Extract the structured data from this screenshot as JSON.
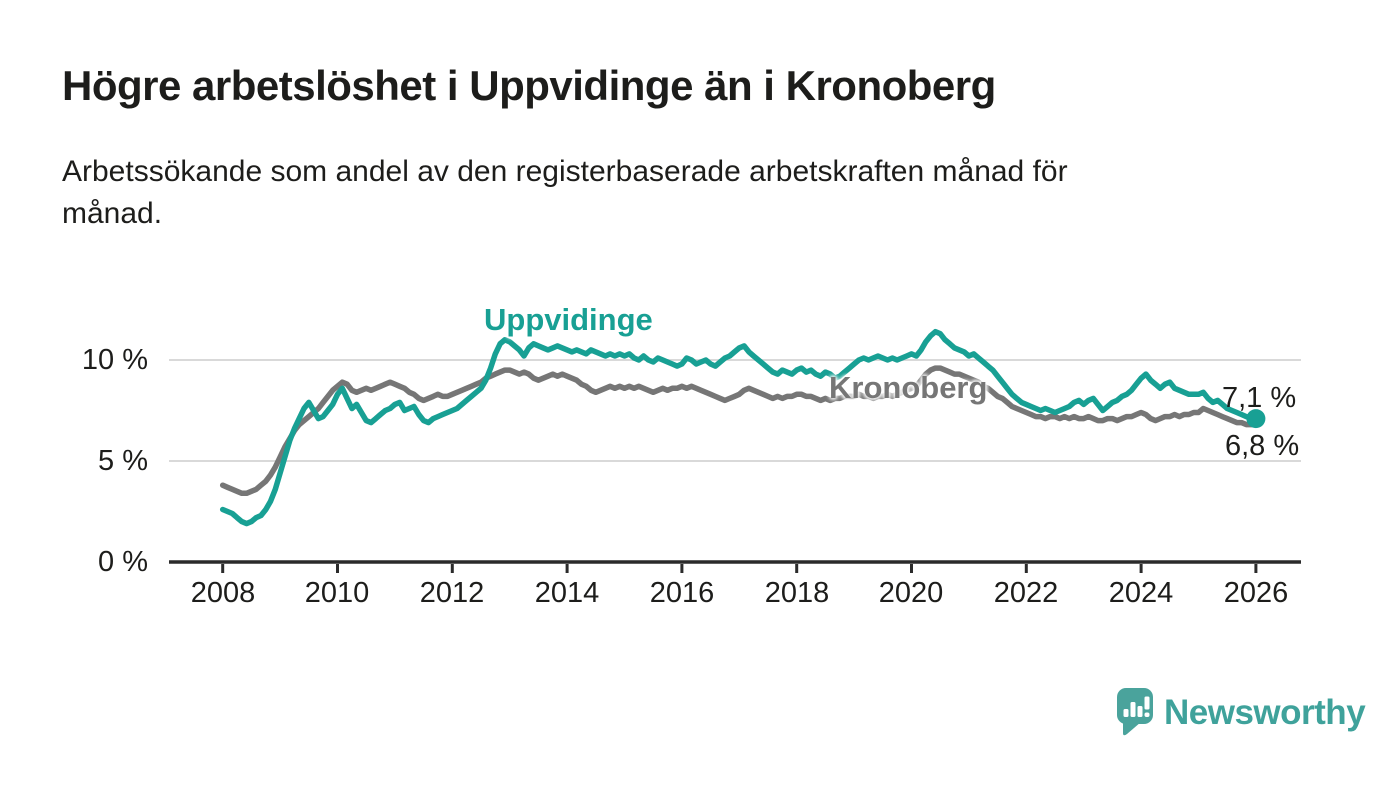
{
  "header": {
    "title": "Högre arbetslöshet i Uppvidinge än i Kronoberg",
    "subtitle": "Arbetssökande som andel av den registerbaserade arbetskraften månad för månad."
  },
  "chart_data": {
    "type": "line",
    "title": "Högre arbetslöshet i Uppvidinge än i Kronoberg",
    "x_unit": "month",
    "x_start": "2008-01",
    "x_end": "2026-01",
    "y_unit": "percent",
    "ylim": [
      0,
      11.5
    ],
    "grid": true,
    "grid_y_values": [
      5,
      10
    ],
    "y_tick_values": [
      0,
      5,
      10
    ],
    "y_tick_labels": [
      "0 %",
      "5 %",
      "10 %"
    ],
    "x_tick_years": [
      2008,
      2010,
      2012,
      2014,
      2016,
      2018,
      2020,
      2022,
      2024,
      2026
    ],
    "x_tick_labels": [
      "2008",
      "2010",
      "2012",
      "2014",
      "2016",
      "2018",
      "2020",
      "2022",
      "2024",
      "2026"
    ],
    "legend_position": "inline-labels",
    "style": {
      "axis_color": "#2B2B2B",
      "grid_color": "#D9D9D9"
    },
    "series": [
      {
        "name": "Uppvidinge",
        "label_text": "Uppvidinge",
        "color": "#18A094",
        "end_label": "7,1 %",
        "end_value": 7.1,
        "end_dot": true,
        "values": [
          2.6,
          2.5,
          2.4,
          2.2,
          2.0,
          1.9,
          2.0,
          2.2,
          2.3,
          2.6,
          3.0,
          3.6,
          4.4,
          5.2,
          6.0,
          6.6,
          7.1,
          7.6,
          7.9,
          7.5,
          7.1,
          7.2,
          7.5,
          7.8,
          8.3,
          8.6,
          8.1,
          7.6,
          7.8,
          7.4,
          7.0,
          6.9,
          7.1,
          7.3,
          7.5,
          7.6,
          7.8,
          7.9,
          7.5,
          7.6,
          7.7,
          7.3,
          7.0,
          6.9,
          7.1,
          7.2,
          7.3,
          7.4,
          7.5,
          7.6,
          7.8,
          8.0,
          8.2,
          8.4,
          8.6,
          9.0,
          9.6,
          10.3,
          10.8,
          11.0,
          10.9,
          10.7,
          10.5,
          10.2,
          10.6,
          10.8,
          10.7,
          10.6,
          10.5,
          10.6,
          10.7,
          10.6,
          10.5,
          10.4,
          10.5,
          10.4,
          10.3,
          10.5,
          10.4,
          10.3,
          10.2,
          10.3,
          10.2,
          10.3,
          10.2,
          10.3,
          10.1,
          10.0,
          10.2,
          10.0,
          9.9,
          10.1,
          10.0,
          9.9,
          9.8,
          9.7,
          9.8,
          10.1,
          10.0,
          9.8,
          9.9,
          10.0,
          9.8,
          9.7,
          9.9,
          10.1,
          10.2,
          10.4,
          10.6,
          10.7,
          10.4,
          10.2,
          10.0,
          9.8,
          9.6,
          9.4,
          9.3,
          9.5,
          9.4,
          9.3,
          9.5,
          9.6,
          9.4,
          9.5,
          9.3,
          9.2,
          9.4,
          9.3,
          9.1,
          9.2,
          9.4,
          9.6,
          9.8,
          10.0,
          10.1,
          10.0,
          10.1,
          10.2,
          10.1,
          10.0,
          10.1,
          10.0,
          10.1,
          10.2,
          10.3,
          10.2,
          10.5,
          10.9,
          11.2,
          11.4,
          11.3,
          11.0,
          10.8,
          10.6,
          10.5,
          10.4,
          10.2,
          10.3,
          10.1,
          9.9,
          9.7,
          9.5,
          9.2,
          8.9,
          8.6,
          8.3,
          8.1,
          7.9,
          7.8,
          7.7,
          7.6,
          7.5,
          7.6,
          7.5,
          7.4,
          7.5,
          7.6,
          7.7,
          7.9,
          8.0,
          7.8,
          8.0,
          8.1,
          7.8,
          7.5,
          7.7,
          7.9,
          8.0,
          8.2,
          8.3,
          8.5,
          8.8,
          9.1,
          9.3,
          9.0,
          8.8,
          8.6,
          8.8,
          8.9,
          8.6,
          8.5,
          8.4,
          8.3,
          8.3,
          8.3,
          8.4,
          8.1,
          7.9,
          8.0,
          7.8,
          7.6,
          7.5,
          7.4,
          7.3,
          7.2,
          7.1,
          7.1
        ]
      },
      {
        "name": "Kronoberg",
        "label_text": "Kronoberg",
        "color": "#767676",
        "end_label": "6,8 %",
        "end_value": 6.8,
        "end_dot": false,
        "values": [
          3.8,
          3.7,
          3.6,
          3.5,
          3.4,
          3.4,
          3.5,
          3.6,
          3.8,
          4.0,
          4.3,
          4.7,
          5.2,
          5.7,
          6.1,
          6.5,
          6.8,
          7.0,
          7.2,
          7.4,
          7.6,
          7.9,
          8.2,
          8.5,
          8.7,
          8.9,
          8.8,
          8.5,
          8.4,
          8.5,
          8.6,
          8.5,
          8.6,
          8.7,
          8.8,
          8.9,
          8.8,
          8.7,
          8.6,
          8.4,
          8.3,
          8.1,
          8.0,
          8.1,
          8.2,
          8.3,
          8.2,
          8.2,
          8.3,
          8.4,
          8.5,
          8.6,
          8.7,
          8.8,
          8.9,
          9.1,
          9.2,
          9.3,
          9.4,
          9.5,
          9.5,
          9.4,
          9.3,
          9.4,
          9.3,
          9.1,
          9.0,
          9.1,
          9.2,
          9.3,
          9.2,
          9.3,
          9.2,
          9.1,
          9.0,
          8.8,
          8.7,
          8.5,
          8.4,
          8.5,
          8.6,
          8.7,
          8.6,
          8.7,
          8.6,
          8.7,
          8.6,
          8.7,
          8.6,
          8.5,
          8.4,
          8.5,
          8.6,
          8.5,
          8.6,
          8.6,
          8.7,
          8.6,
          8.7,
          8.6,
          8.5,
          8.4,
          8.3,
          8.2,
          8.1,
          8.0,
          8.1,
          8.2,
          8.3,
          8.5,
          8.6,
          8.5,
          8.4,
          8.3,
          8.2,
          8.1,
          8.2,
          8.1,
          8.2,
          8.2,
          8.3,
          8.3,
          8.2,
          8.2,
          8.1,
          8.0,
          8.1,
          8.0,
          8.1,
          8.1,
          8.2,
          8.2,
          8.2,
          8.3,
          8.2,
          8.2,
          8.1,
          8.2,
          8.2,
          8.3,
          8.2,
          8.3,
          8.4,
          8.5,
          8.6,
          8.7,
          9.0,
          9.3,
          9.5,
          9.6,
          9.6,
          9.5,
          9.4,
          9.3,
          9.3,
          9.2,
          9.1,
          9.0,
          8.9,
          8.7,
          8.6,
          8.4,
          8.2,
          8.1,
          7.9,
          7.7,
          7.6,
          7.5,
          7.4,
          7.3,
          7.2,
          7.2,
          7.1,
          7.2,
          7.2,
          7.1,
          7.2,
          7.1,
          7.2,
          7.1,
          7.1,
          7.2,
          7.1,
          7.0,
          7.0,
          7.1,
          7.1,
          7.0,
          7.1,
          7.2,
          7.2,
          7.3,
          7.4,
          7.3,
          7.1,
          7.0,
          7.1,
          7.2,
          7.2,
          7.3,
          7.2,
          7.3,
          7.3,
          7.4,
          7.4,
          7.6,
          7.5,
          7.4,
          7.3,
          7.2,
          7.1,
          7.0,
          6.9,
          6.9,
          6.8,
          6.8,
          6.8
        ]
      }
    ]
  },
  "footer": {
    "brand": "Newsworthy",
    "brand_color": "#3FA29B",
    "logo_icon": "bar-chart-speech-bubble-icon",
    "logo_icon_color": "#4AA39C"
  }
}
